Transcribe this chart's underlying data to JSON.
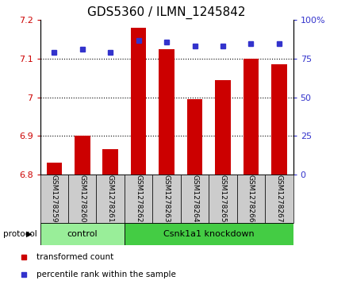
{
  "title": "GDS5360 / ILMN_1245842",
  "samples": [
    "GSM1278259",
    "GSM1278260",
    "GSM1278261",
    "GSM1278262",
    "GSM1278263",
    "GSM1278264",
    "GSM1278265",
    "GSM1278266",
    "GSM1278267"
  ],
  "bar_values": [
    6.83,
    6.9,
    6.865,
    7.18,
    7.125,
    6.995,
    7.045,
    7.1,
    7.085
  ],
  "percentile_values": [
    79,
    81,
    79,
    87,
    86,
    83,
    83,
    85,
    85
  ],
  "bar_bottom": 6.8,
  "ylim": [
    6.8,
    7.2
  ],
  "ylim_right": [
    0,
    100
  ],
  "yticks_left": [
    6.8,
    6.9,
    7.0,
    7.1,
    7.2
  ],
  "yticks_right": [
    0,
    25,
    50,
    75,
    100
  ],
  "bar_color": "#cc0000",
  "dot_color": "#3333cc",
  "control_color": "#99ee99",
  "knockdown_color": "#44cc44",
  "control_samples": [
    0,
    1,
    2
  ],
  "knockdown_samples": [
    3,
    4,
    5,
    6,
    7,
    8
  ],
  "control_label": "control",
  "knockdown_label": "Csnk1a1 knockdown",
  "protocol_label": "protocol",
  "legend_bar_label": "transformed count",
  "legend_dot_label": "percentile rank within the sample",
  "bar_width": 0.55,
  "tick_area_color": "#cccccc",
  "title_fontsize": 11,
  "tick_fontsize": 8,
  "label_fontsize": 8
}
